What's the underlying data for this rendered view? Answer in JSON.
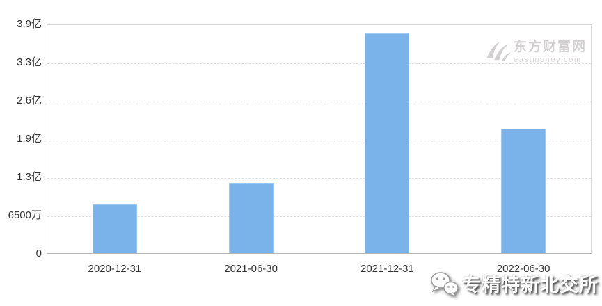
{
  "chart_data": {
    "type": "bar",
    "title": "",
    "xlabel": "",
    "ylabel": "",
    "unit": "亿 (hundred million)",
    "categories": [
      "2020-12-31",
      "2021-06-30",
      "2021-12-31",
      "2022-06-30"
    ],
    "values": [
      0.83,
      1.19,
      3.73,
      2.12
    ],
    "ylim": [
      0,
      3.9
    ],
    "yticks": [
      {
        "value": 0,
        "label": "0"
      },
      {
        "value": 0.65,
        "label": "6500万"
      },
      {
        "value": 1.3,
        "label": "1.3亿"
      },
      {
        "value": 1.95,
        "label": "1.9亿"
      },
      {
        "value": 2.6,
        "label": "2.6亿"
      },
      {
        "value": 3.25,
        "label": "3.3亿"
      },
      {
        "value": 3.9,
        "label": "3.9亿"
      }
    ],
    "grid": "horizontal dashed",
    "legend_position": "none",
    "bar_color": "#7ab3e9",
    "bar_border_color": "#9cc7f0"
  },
  "watermark": {
    "site_name": "东方财富网",
    "site_domain": "eastmoney.com",
    "color": "#d2cfcf"
  },
  "overlay": {
    "account_name": "专精特新北交所",
    "icon": "wechat-icon",
    "text_color": "#ffffff"
  },
  "colors": {
    "background": "#ffffff",
    "grid": "#dddddd",
    "plot_border": "#d9d9d9",
    "axis_line": "#b5b5b5",
    "axis_text": "#333333"
  }
}
